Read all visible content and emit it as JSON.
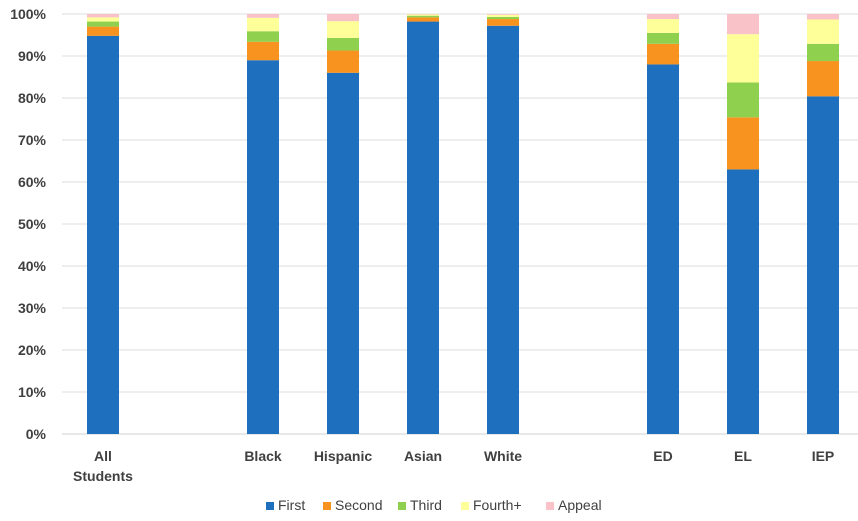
{
  "chart_data": {
    "type": "bar",
    "stacked": true,
    "categories": [
      {
        "label_lines": [
          "All",
          "Students"
        ]
      },
      {
        "label_lines": [
          "Black"
        ]
      },
      {
        "label_lines": [
          "Hispanic"
        ]
      },
      {
        "label_lines": [
          "Asian"
        ]
      },
      {
        "label_lines": [
          "White"
        ]
      },
      {
        "label_lines": [
          "ED"
        ]
      },
      {
        "label_lines": [
          "EL"
        ]
      },
      {
        "label_lines": [
          "IEP"
        ]
      }
    ],
    "category_slots": [
      0,
      2,
      3,
      4,
      5,
      7,
      8,
      9
    ],
    "series": [
      {
        "name": "First",
        "color": "#1f6fbf",
        "values": [
          94.8,
          89.0,
          86.0,
          98.2,
          97.2,
          88.0,
          63.0,
          80.4
        ]
      },
      {
        "name": "Second",
        "color": "#f7931e",
        "values": [
          2.2,
          4.4,
          5.3,
          1.0,
          1.6,
          4.9,
          12.4,
          8.4
        ]
      },
      {
        "name": "Third",
        "color": "#8fd14f",
        "values": [
          1.2,
          2.5,
          3.0,
          0.4,
          0.5,
          2.6,
          8.3,
          4.1
        ]
      },
      {
        "name": "Fourth+",
        "color": "#ffff99",
        "values": [
          1.0,
          3.2,
          4.0,
          0.3,
          0.5,
          3.3,
          11.5,
          5.8
        ]
      },
      {
        "name": "Appeal",
        "color": "#f9c2c8",
        "values": [
          0.8,
          0.9,
          1.7,
          0.1,
          0.2,
          1.2,
          4.8,
          1.3
        ]
      }
    ],
    "y_ticks": [
      "0%",
      "10%",
      "20%",
      "30%",
      "40%",
      "50%",
      "60%",
      "70%",
      "80%",
      "90%",
      "100%"
    ],
    "ylim": [
      0,
      100
    ],
    "grid": true,
    "legend": "bottom"
  }
}
